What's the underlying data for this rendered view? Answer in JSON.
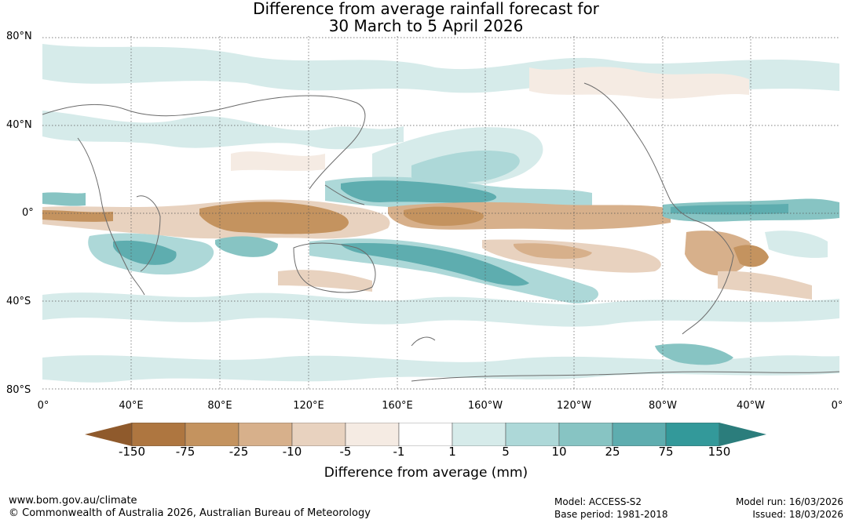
{
  "title": {
    "line1": "Difference from average rainfall forecast for",
    "line2": "30 March to 5 April 2026"
  },
  "map": {
    "lat_labels": [
      "80°N",
      "40°N",
      "0°",
      "40°S",
      "80°S"
    ],
    "lon_labels": [
      "0°",
      "40°E",
      "80°E",
      "120°E",
      "160°E",
      "160°W",
      "120°W",
      "80°W",
      "40°W",
      "0°"
    ],
    "graticule": "dotted"
  },
  "colorbar": {
    "title": "Difference from average (mm)",
    "ticks": [
      "-150",
      "-75",
      "-25",
      "-10",
      "-5",
      "-1",
      "1",
      "5",
      "10",
      "25",
      "75",
      "150"
    ],
    "colors": {
      "extend_low": "#8f5a2c",
      "bins": [
        "#ae7640",
        "#c4935f",
        "#d7b08b",
        "#e8d2bf",
        "#f5ebe3",
        "#ffffff",
        "#d6ebea",
        "#add8d8",
        "#87c4c3",
        "#5eadaf",
        "#33999a"
      ],
      "extend_high": "#2b7d7c"
    }
  },
  "footer": {
    "website": "www.bom.gov.au/climate",
    "copyright": "© Commonwealth of Australia 2026, Australian Bureau of Meteorology",
    "model": "Model: ACCESS-S2",
    "base_period": "Base period: 1981-2018",
    "model_run": "Model run: 16/03/2026",
    "issued": "Issued: 18/03/2026"
  }
}
